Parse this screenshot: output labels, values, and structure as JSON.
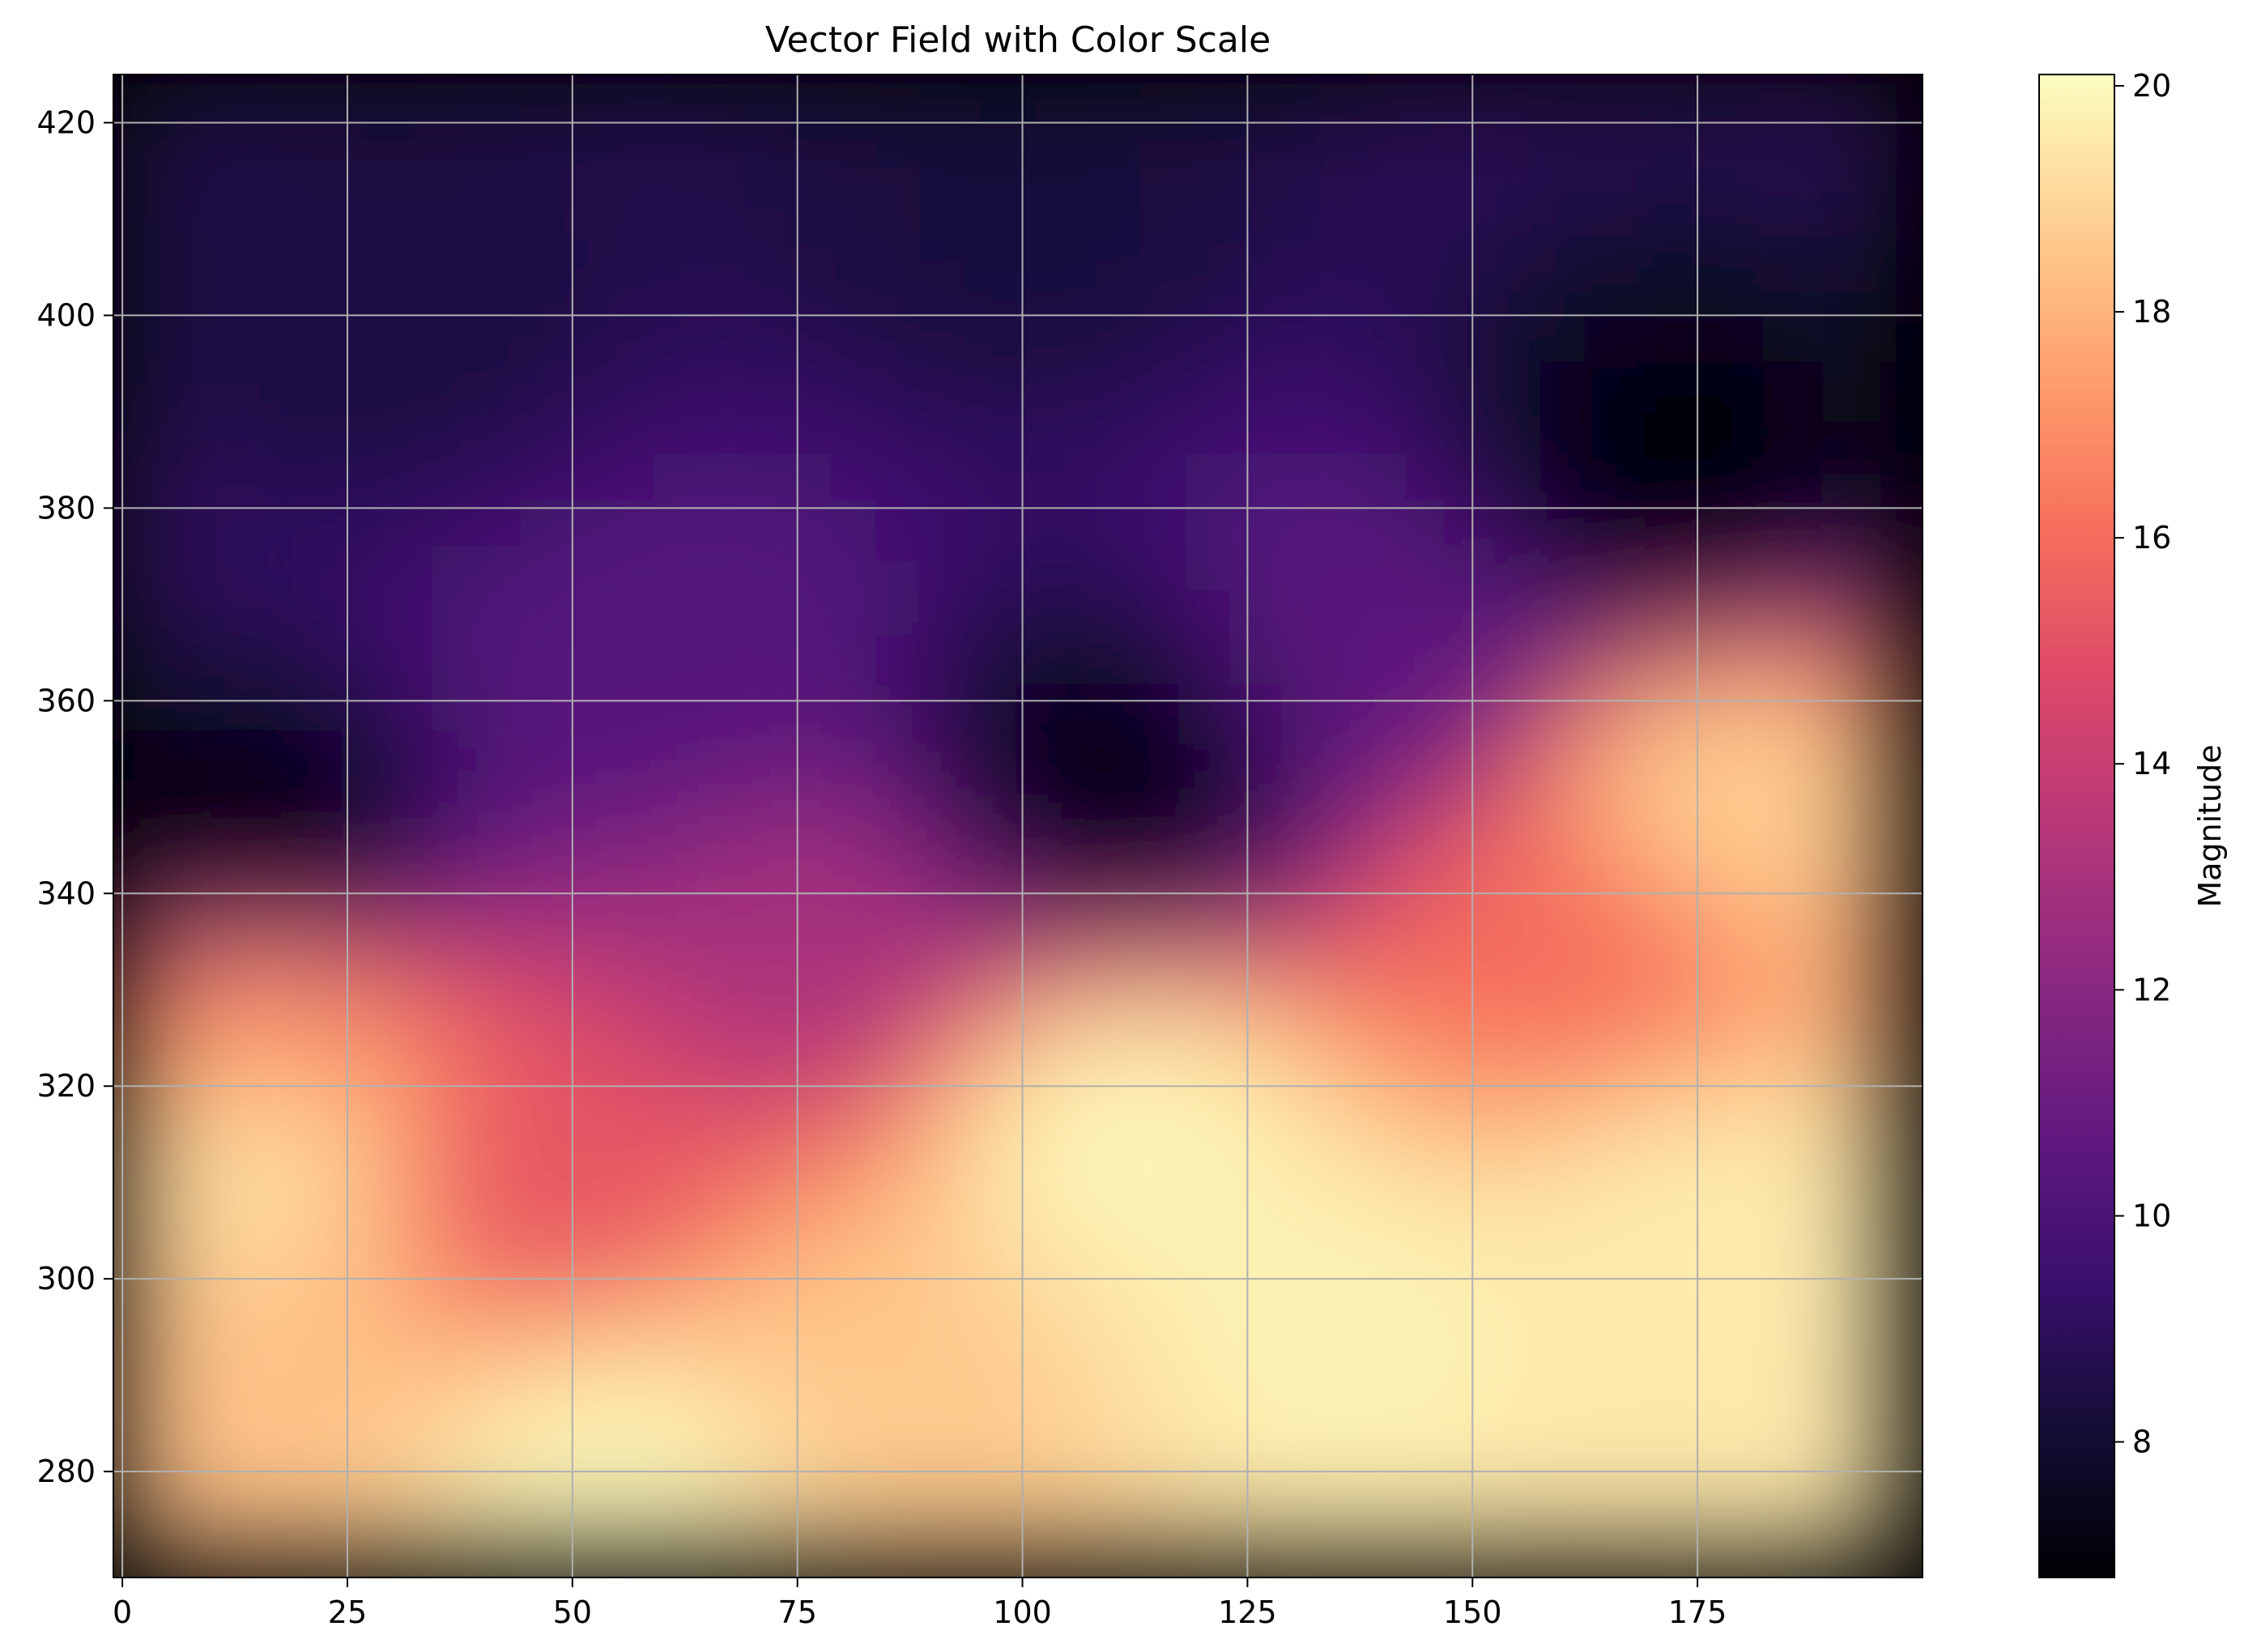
{
  "chart_data": {
    "type": "heatmap",
    "title": "Vector Field with Color Scale",
    "xlabel": "",
    "ylabel": "",
    "xlim": [
      -1,
      200
    ],
    "ylim": [
      269,
      425
    ],
    "x_ticks": [
      0,
      25,
      50,
      75,
      100,
      125,
      150,
      175
    ],
    "y_ticks": [
      280,
      300,
      320,
      340,
      360,
      380,
      400,
      420
    ],
    "grid": true,
    "field_extent": {
      "x": [
        0,
        197
      ],
      "y": [
        271,
        424
      ]
    },
    "colorbar": {
      "label": "Magnitude",
      "colormap": "magma",
      "range": [
        6.8,
        20.1
      ],
      "ticks": [
        8,
        10,
        12,
        14,
        16,
        18,
        20
      ]
    },
    "colormap_stops": [
      {
        "v": 0.0,
        "color": "#000004"
      },
      {
        "v": 0.1,
        "color": "#140e36"
      },
      {
        "v": 0.2,
        "color": "#3b0f70"
      },
      {
        "v": 0.3,
        "color": "#641a80"
      },
      {
        "v": 0.4,
        "color": "#8c2981"
      },
      {
        "v": 0.5,
        "color": "#b73779"
      },
      {
        "v": 0.6,
        "color": "#de4968"
      },
      {
        "v": 0.7,
        "color": "#f7705c"
      },
      {
        "v": 0.8,
        "color": "#fe9f6d"
      },
      {
        "v": 0.9,
        "color": "#fecf92"
      },
      {
        "v": 1.0,
        "color": "#fcfdbf"
      }
    ],
    "magnitude_samples": [
      {
        "x": 15,
        "y": 345,
        "value": 7.0
      },
      {
        "x": 110,
        "y": 352,
        "value": 7.1
      },
      {
        "x": 172,
        "y": 382,
        "value": 7.0
      },
      {
        "x": 100,
        "y": 410,
        "value": 8.3
      },
      {
        "x": 30,
        "y": 400,
        "value": 8.4
      },
      {
        "x": 60,
        "y": 360,
        "value": 10.3
      },
      {
        "x": 140,
        "y": 365,
        "value": 10.5
      },
      {
        "x": 75,
        "y": 335,
        "value": 13.0
      },
      {
        "x": 48,
        "y": 310,
        "value": 15.2
      },
      {
        "x": 160,
        "y": 335,
        "value": 16.0
      },
      {
        "x": 15,
        "y": 312,
        "value": 19.2
      },
      {
        "x": 15,
        "y": 326,
        "value": 17.2
      },
      {
        "x": 178,
        "y": 350,
        "value": 18.8
      },
      {
        "x": 112,
        "y": 315,
        "value": 19.9
      },
      {
        "x": 135,
        "y": 296,
        "value": 19.8
      },
      {
        "x": 175,
        "y": 305,
        "value": 19.6
      },
      {
        "x": 55,
        "y": 280,
        "value": 19.9
      },
      {
        "x": 82,
        "y": 290,
        "value": 18.6
      },
      {
        "x": 15,
        "y": 290,
        "value": 18.4
      },
      {
        "x": 190,
        "y": 285,
        "value": 19.5
      }
    ]
  }
}
